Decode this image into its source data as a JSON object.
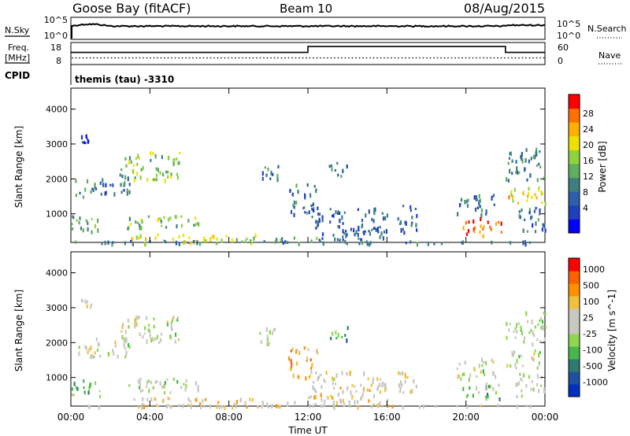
{
  "header": {
    "station": "Goose Bay (fitACF)",
    "beam": "Beam 10",
    "date": "08/Aug/2015"
  },
  "chart_data": [
    {
      "type": "line",
      "panel": "noise",
      "left_label": "N.Sky",
      "right_label": "N.Search",
      "left_ticks": [
        "10^5",
        "10^0"
      ],
      "right_ticks": [
        "10^5",
        "10^0"
      ],
      "series": [
        {
          "name": "N.Sky",
          "style": "solid",
          "level_fraction": 0.6
        },
        {
          "name": "N.Search",
          "style": "dotted"
        }
      ]
    },
    {
      "type": "line",
      "panel": "frequency",
      "left_label_lines": [
        "Freq.",
        "[MHz]"
      ],
      "right_label": "Nave",
      "left_ticks": [
        "18",
        "8"
      ],
      "right_ticks": [
        "60",
        "0"
      ],
      "frequency_steps": [
        {
          "from": "00:00",
          "to": "12:00",
          "value_fraction": 0.55
        },
        {
          "from": "12:00",
          "to": "22:00",
          "value_fraction": 0.82
        },
        {
          "from": "22:00",
          "to": "00:00",
          "value_fraction": 0.55
        }
      ],
      "nave_level_fraction": 0.3
    },
    {
      "type": "table",
      "panel": "cpid",
      "label": "CPID",
      "program": "themis (tau) -3310"
    },
    {
      "type": "heatmap",
      "panel": "power",
      "ylabel": "Slant Range [km]",
      "ylim": [
        180,
        4600
      ],
      "yticks": [
        1000,
        2000,
        3000,
        4000
      ],
      "xlim_hours": [
        0,
        24
      ],
      "xtick_labels": [
        "00:00",
        "04:00",
        "08:00",
        "12:00",
        "16:00",
        "20:00",
        "00:00"
      ],
      "colorbar": {
        "label": "Power [dB]",
        "ticks": [
          "28",
          "24",
          "20",
          "16",
          "12",
          "8",
          "4"
        ],
        "colors": [
          "#0000ff",
          "#1f3fbf",
          "#2e5fa8",
          "#3f7f7f",
          "#5fae5f",
          "#8fd23f",
          "#f0e000",
          "#ffb000",
          "#ff7000",
          "#ff0000"
        ]
      },
      "echo_regions": [
        {
          "t0": 0.1,
          "t1": 1.2,
          "r0": 1500,
          "r1": 2000,
          "level": 0.35
        },
        {
          "t0": 0.5,
          "t1": 1.0,
          "r0": 3000,
          "r1": 3300,
          "level": 0.2
        },
        {
          "t0": 1.2,
          "t1": 3.0,
          "r0": 1600,
          "r1": 2200,
          "level": 0.3
        },
        {
          "t0": 2.5,
          "t1": 5.5,
          "r0": 2000,
          "r1": 2800,
          "level": 0.5
        },
        {
          "t0": 0.0,
          "t1": 1.5,
          "r0": 500,
          "r1": 1000,
          "level": 0.45
        },
        {
          "t0": 2.8,
          "t1": 6.5,
          "r0": 600,
          "r1": 1000,
          "level": 0.5
        },
        {
          "t0": 3.0,
          "t1": 9.5,
          "r0": 180,
          "r1": 450,
          "level": 0.6
        },
        {
          "t0": 9.5,
          "t1": 12.5,
          "r0": 180,
          "r1": 350,
          "level": 0.4
        },
        {
          "t0": 9.5,
          "t1": 10.5,
          "r0": 2000,
          "r1": 2500,
          "level": 0.3
        },
        {
          "t0": 11.0,
          "t1": 12.5,
          "r0": 1000,
          "r1": 1900,
          "level": 0.3
        },
        {
          "t0": 12.0,
          "t1": 16.0,
          "r0": 180,
          "r1": 1200,
          "level": 0.25
        },
        {
          "t0": 13.0,
          "t1": 14.0,
          "r0": 2100,
          "r1": 2500,
          "level": 0.3
        },
        {
          "t0": 16.5,
          "t1": 17.5,
          "r0": 500,
          "r1": 1300,
          "level": 0.25
        },
        {
          "t0": 19.5,
          "t1": 21.5,
          "r0": 1000,
          "r1": 1600,
          "level": 0.3
        },
        {
          "t0": 19.8,
          "t1": 21.8,
          "r0": 400,
          "r1": 900,
          "level": 0.85
        },
        {
          "t0": 22.0,
          "t1": 24.0,
          "r0": 1300,
          "r1": 1800,
          "level": 0.7
        },
        {
          "t0": 22.0,
          "t1": 24.0,
          "r0": 2000,
          "r1": 2900,
          "level": 0.35
        },
        {
          "t0": 22.5,
          "t1": 24.0,
          "r0": 500,
          "r1": 1200,
          "level": 0.3
        },
        {
          "t0": 0.0,
          "t1": 24.0,
          "r0": 180,
          "r1": 250,
          "level": 0.3
        }
      ]
    },
    {
      "type": "heatmap",
      "panel": "velocity",
      "ylabel": "Slant Range [km]",
      "ylim": [
        180,
        4600
      ],
      "yticks": [
        1000,
        2000,
        3000,
        4000
      ],
      "xlim_hours": [
        0,
        24
      ],
      "xtick_labels": [
        "00:00",
        "04:00",
        "08:00",
        "12:00",
        "16:00",
        "20:00",
        "00:00"
      ],
      "xlabel": "Time UT",
      "colorbar": {
        "label": "Velocity [m s^-1]",
        "ticks": [
          "1000",
          "500",
          "100",
          "25",
          "-25",
          "-100",
          "-500",
          "-1000"
        ],
        "colors": [
          "#0030c0",
          "#2050a0",
          "#2e7a6e",
          "#46b84a",
          "#90d650",
          "#c8c8c0",
          "#c8c8c0",
          "#f0c040",
          "#ff9000",
          "#ff6000",
          "#ff0000"
        ]
      },
      "echo_regions": [
        {
          "t0": 0.1,
          "t1": 1.2,
          "r0": 1500,
          "r1": 2000,
          "level": 0.5
        },
        {
          "t0": 0.5,
          "t1": 1.0,
          "r0": 3000,
          "r1": 3300,
          "level": 0.5
        },
        {
          "t0": 1.2,
          "t1": 3.0,
          "r0": 1600,
          "r1": 2200,
          "level": 0.5
        },
        {
          "t0": 2.5,
          "t1": 5.5,
          "r0": 2000,
          "r1": 2800,
          "level": 0.5
        },
        {
          "t0": 0.0,
          "t1": 1.5,
          "r0": 500,
          "r1": 1000,
          "level": 0.35
        },
        {
          "t0": 2.8,
          "t1": 6.5,
          "r0": 600,
          "r1": 1000,
          "level": 0.45
        },
        {
          "t0": 3.0,
          "t1": 9.5,
          "r0": 180,
          "r1": 450,
          "level": 0.62
        },
        {
          "t0": 9.5,
          "t1": 12.5,
          "r0": 180,
          "r1": 350,
          "level": 0.6
        },
        {
          "t0": 9.5,
          "t1": 10.5,
          "r0": 2000,
          "r1": 2500,
          "level": 0.5
        },
        {
          "t0": 11.0,
          "t1": 12.5,
          "r0": 1000,
          "r1": 1900,
          "level": 0.7
        },
        {
          "t0": 12.0,
          "t1": 16.0,
          "r0": 180,
          "r1": 1200,
          "level": 0.6
        },
        {
          "t0": 13.0,
          "t1": 14.0,
          "r0": 2100,
          "r1": 2500,
          "level": 0.3
        },
        {
          "t0": 16.5,
          "t1": 17.5,
          "r0": 500,
          "r1": 1300,
          "level": 0.6
        },
        {
          "t0": 19.5,
          "t1": 21.5,
          "r0": 1000,
          "r1": 1600,
          "level": 0.5
        },
        {
          "t0": 19.8,
          "t1": 21.8,
          "r0": 400,
          "r1": 900,
          "level": 0.4
        },
        {
          "t0": 22.0,
          "t1": 24.0,
          "r0": 1300,
          "r1": 1800,
          "level": 0.5
        },
        {
          "t0": 22.0,
          "t1": 24.0,
          "r0": 2000,
          "r1": 2900,
          "level": 0.5
        },
        {
          "t0": 22.5,
          "t1": 24.0,
          "r0": 500,
          "r1": 1200,
          "level": 0.5
        },
        {
          "t0": 0.0,
          "t1": 24.0,
          "r0": 180,
          "r1": 250,
          "level": 0.6
        }
      ]
    }
  ]
}
